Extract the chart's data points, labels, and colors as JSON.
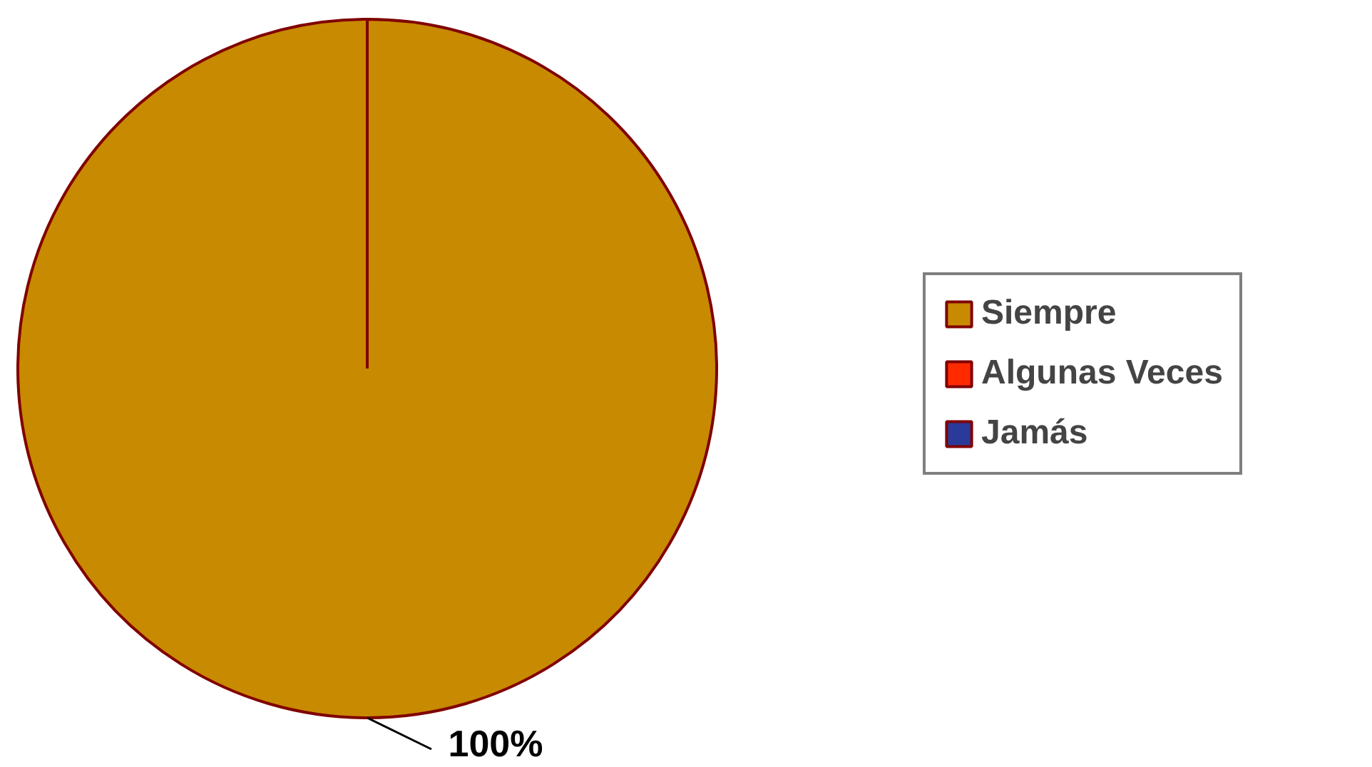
{
  "chart_data": {
    "type": "pie",
    "categories": [
      "Siempre",
      "Algunas Veces",
      "Jamás"
    ],
    "values": [
      100,
      0,
      0
    ],
    "colors": [
      "#c88a00",
      "#ff2a00",
      "#2a3a9a"
    ],
    "value_labels": [
      "100%",
      null,
      null
    ],
    "legend": "right"
  }
}
